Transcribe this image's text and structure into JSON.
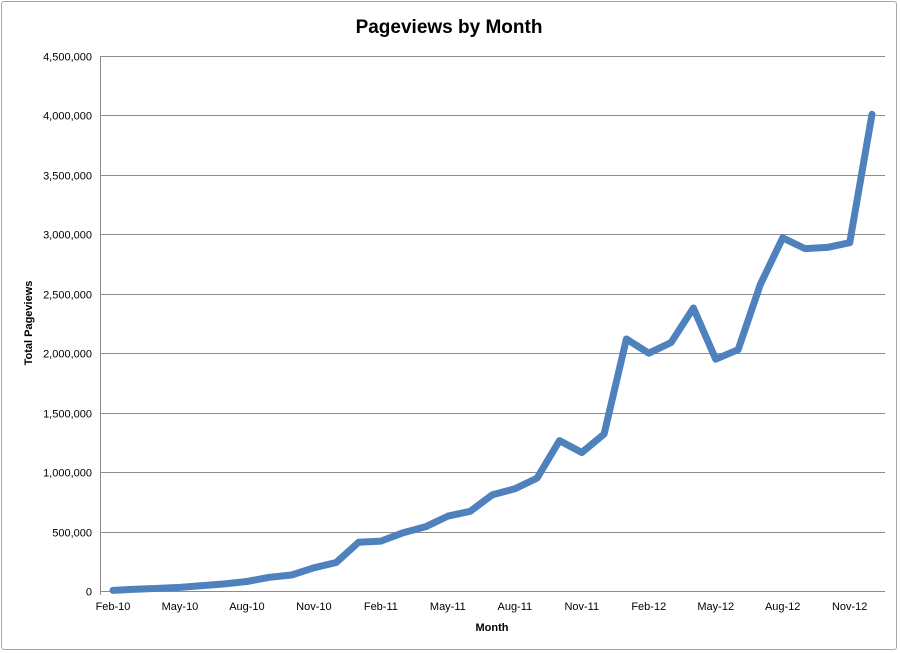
{
  "chart_data": {
    "type": "line",
    "title": "Pageviews by Month",
    "xlabel": "Month",
    "ylabel": "Total Pageviews",
    "ylim": [
      0,
      4500000
    ],
    "y_ticks": [
      0,
      500000,
      1000000,
      1500000,
      2000000,
      2500000,
      3000000,
      3500000,
      4000000,
      4500000
    ],
    "y_tick_labels": [
      "0",
      "500,000",
      "1,000,000",
      "1,500,000",
      "2,000,000",
      "2,500,000",
      "3,000,000",
      "3,500,000",
      "4,000,000",
      "4,500,000"
    ],
    "x_tick_labels": [
      "Feb-10",
      "May-10",
      "Aug-10",
      "Nov-10",
      "Feb-11",
      "May-11",
      "Aug-11",
      "Nov-11",
      "Feb-12",
      "May-12",
      "Aug-12",
      "Nov-12"
    ],
    "grid": true,
    "legend": "none",
    "line_color": "#4f81bd",
    "categories": [
      "Feb-10",
      "Mar-10",
      "Apr-10",
      "May-10",
      "Jun-10",
      "Jul-10",
      "Aug-10",
      "Sep-10",
      "Oct-10",
      "Nov-10",
      "Dec-10",
      "Jan-11",
      "Feb-11",
      "Mar-11",
      "Apr-11",
      "May-11",
      "Jun-11",
      "Jul-11",
      "Aug-11",
      "Sep-11",
      "Oct-11",
      "Nov-11",
      "Dec-11",
      "Jan-12",
      "Feb-12",
      "Mar-12",
      "Apr-12",
      "May-12",
      "Jun-12",
      "Jul-12",
      "Aug-12",
      "Sep-12",
      "Oct-12",
      "Nov-12",
      "Dec-12"
    ],
    "series": [
      {
        "values": [
          5000,
          15000,
          22000,
          30000,
          45000,
          60000,
          80000,
          115000,
          135000,
          195000,
          240000,
          410000,
          420000,
          490000,
          540000,
          630000,
          670000,
          810000,
          860000,
          950000,
          1265000,
          1165000,
          1320000,
          2120000,
          2000000,
          2090000,
          2380000,
          1950000,
          2030000,
          2580000,
          2970000,
          2880000,
          2890000,
          2930000,
          4010000
        ]
      }
    ]
  }
}
